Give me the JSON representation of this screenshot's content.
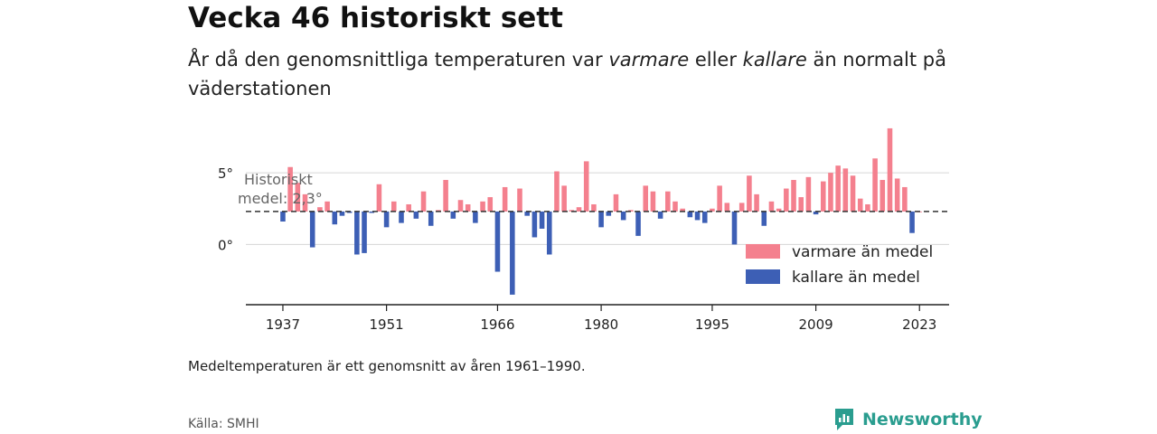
{
  "title": "Vecka 46 historiskt sett",
  "subtitle": {
    "part1": "År då den genomsnittliga temperaturen var ",
    "warm_word": "varmare",
    "part2": " eller ",
    "cold_word": "kallare",
    "part3": " än normalt på väderstationen"
  },
  "note": "Medeltemperaturen är ett genomsnitt av åren 1961–1990.",
  "source": "Källa: SMHI",
  "brand": "Newsworthy",
  "chart_data": {
    "type": "bar",
    "baseline": 2.3,
    "baseline_label_line1": "Historiskt",
    "baseline_label_line2": "medel: 2,3°",
    "x_ticks": [
      "1937",
      "1951",
      "1966",
      "1980",
      "1995",
      "2009",
      "2023"
    ],
    "y_ticks": [
      {
        "value": 0,
        "label": "0°"
      },
      {
        "value": 5,
        "label": "5°"
      }
    ],
    "ylim": [
      -4.2,
      8.6
    ],
    "xlim": [
      1932,
      2027
    ],
    "colors": {
      "warm": "#f4808e",
      "cold": "#3d5fb5"
    },
    "legend": [
      {
        "key": "warm",
        "label": "varmare än medel"
      },
      {
        "key": "cold",
        "label": "kallare än medel"
      }
    ],
    "years": [
      1937,
      1938,
      1939,
      1940,
      1941,
      1942,
      1943,
      1944,
      1945,
      1946,
      1947,
      1948,
      1949,
      1950,
      1951,
      1952,
      1953,
      1954,
      1955,
      1956,
      1957,
      1958,
      1959,
      1960,
      1961,
      1962,
      1963,
      1964,
      1965,
      1966,
      1967,
      1968,
      1969,
      1970,
      1971,
      1972,
      1973,
      1974,
      1975,
      1976,
      1977,
      1978,
      1979,
      1980,
      1981,
      1982,
      1983,
      1984,
      1985,
      1986,
      1987,
      1988,
      1989,
      1990,
      1991,
      1992,
      1993,
      1994,
      1995,
      1996,
      1997,
      1998,
      1999,
      2000,
      2001,
      2002,
      2003,
      2004,
      2005,
      2006,
      2007,
      2008,
      2009,
      2010,
      2011,
      2012,
      2013,
      2014,
      2015,
      2016,
      2017,
      2018,
      2019,
      2020,
      2021,
      2022,
      2023
    ],
    "values": [
      1.6,
      5.4,
      4.3,
      3.5,
      -0.2,
      2.6,
      3.0,
      1.4,
      2.0,
      2.2,
      -0.7,
      -0.6,
      2.2,
      4.2,
      1.2,
      3.0,
      1.5,
      2.8,
      1.8,
      3.7,
      1.3,
      2.4,
      4.5,
      1.8,
      3.1,
      2.8,
      1.5,
      3.0,
      3.3,
      -1.9,
      4.0,
      -3.5,
      3.9,
      2.0,
      0.5,
      1.1,
      -0.7,
      5.1,
      4.1,
      2.4,
      2.6,
      5.8,
      2.8,
      1.2,
      2.0,
      3.5,
      1.7,
      2.4,
      0.6,
      4.1,
      3.7,
      1.8,
      3.7,
      3.0,
      2.5,
      1.9,
      1.7,
      1.5,
      2.5,
      4.1,
      2.9,
      0.0,
      2.9,
      4.8,
      3.5,
      1.3,
      3.0,
      2.5,
      3.9,
      4.5,
      3.3,
      4.7,
      2.1,
      4.4,
      5.0,
      5.5,
      5.3,
      4.8,
      3.2,
      2.8,
      6.0,
      4.5,
      8.1,
      4.6,
      4.0,
      0.8,
      2.3
    ]
  }
}
